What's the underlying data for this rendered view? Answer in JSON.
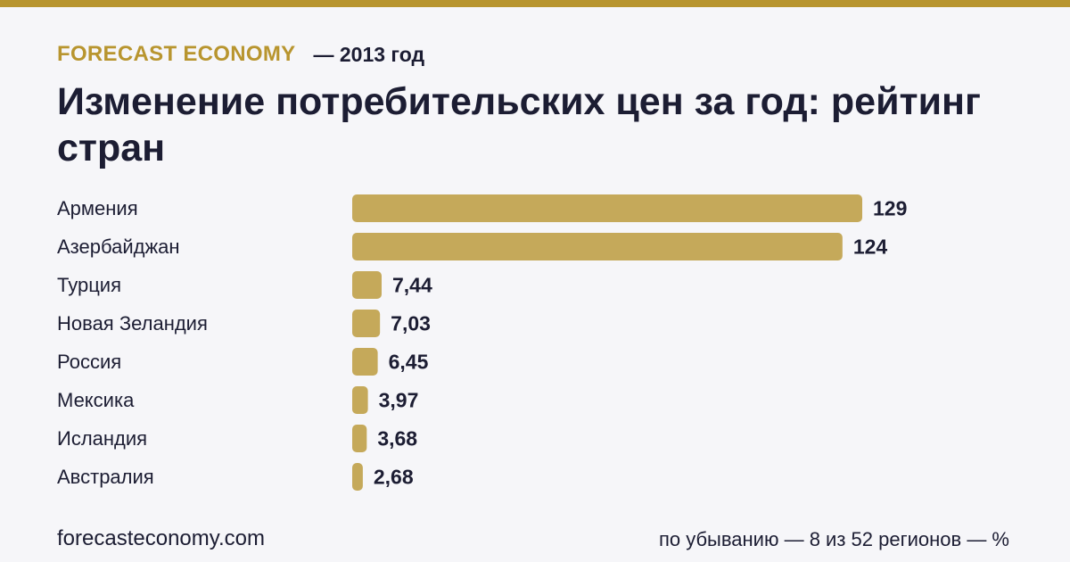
{
  "colors": {
    "accent": "#b8952f",
    "bar": "#c5a95a",
    "text": "#1c1d33",
    "background": "#f6f6f9"
  },
  "header": {
    "brand": "FORECAST ECONOMY",
    "year_label": "— 2013 год",
    "title": "Изменение потребительских цен за год: рейтинг стран"
  },
  "footer": {
    "site": "forecasteconomy.com",
    "note": "по убыванию — 8 из 52 регионов — %"
  },
  "chart_data": {
    "type": "bar",
    "orientation": "horizontal",
    "categories": [
      "Армения",
      "Азербайджан",
      "Турция",
      "Новая Зеландия",
      "Россия",
      "Мексика",
      "Исландия",
      "Австралия"
    ],
    "values": [
      129,
      124,
      7.44,
      7.03,
      6.45,
      3.97,
      3.68,
      2.68
    ],
    "value_labels": [
      "129",
      "124",
      "7,44",
      "7,03",
      "6,45",
      "3,97",
      "3,68",
      "2,68"
    ],
    "xlim": [
      0,
      129
    ],
    "grid": false,
    "legend": "none"
  }
}
